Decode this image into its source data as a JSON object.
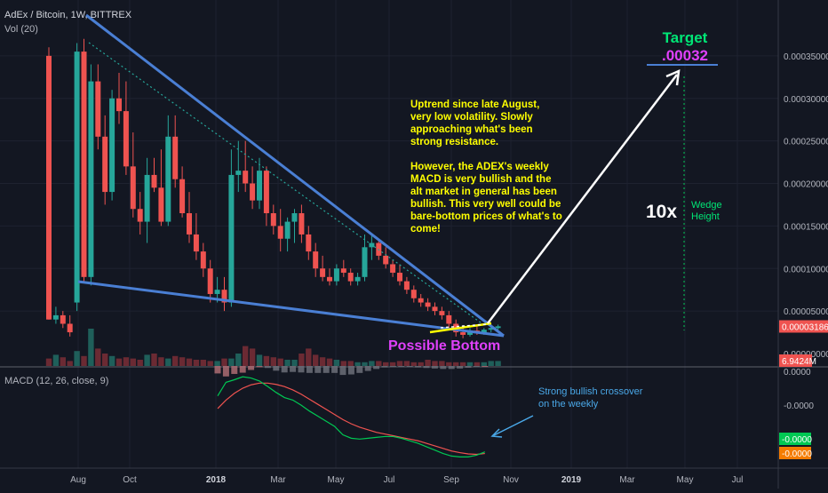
{
  "header": {
    "symbol_line": "AdEx / Bitcoin, 1W, BITTREX",
    "volume_label": "Vol (20)",
    "macd_label": "MACD (12, 26, close, 9)"
  },
  "price_axis": {
    "ticks": [
      "0.00035000",
      "0.00030000",
      "0.00025000",
      "0.00020000",
      "0.00015000",
      "0.00010000",
      "0.00005000",
      "0.00000000"
    ],
    "last_price": "0.00003186",
    "volume_value": "6.9424M"
  },
  "macd_axis": {
    "ticks": [
      "0.0000",
      "-0.0000"
    ],
    "macd_value": "-0.0000",
    "signal_value": "-0.0000"
  },
  "time_axis": {
    "labels": [
      "Aug",
      "Oct",
      "2018",
      "Mar",
      "May",
      "Jul",
      "Sep",
      "Nov",
      "2019",
      "Mar",
      "May",
      "Jul"
    ]
  },
  "annotations": {
    "target_title": "Target",
    "target_value": ".00032",
    "note_lines": [
      "Uptrend since late August,",
      "very low volatility. Slowly",
      "approaching what's been",
      "strong resistance.",
      "",
      "However, the ADEX's weekly",
      "MACD is very bullish and the",
      "alt market in general has been",
      "bullish. This very well could be",
      "bare-bottom prices of what's to",
      "come!"
    ],
    "multiplier": "10x",
    "wedge_line1": "Wedge",
    "wedge_line2": "Height",
    "possible_bottom": "Possible Bottom",
    "crossover_line1": "Strong bullish crossover",
    "crossover_line2": "on the weekly"
  },
  "colors": {
    "background": "#131722",
    "up": "#26a69a",
    "down": "#ef5350",
    "trendline": "#4a7fd4",
    "target": "#00e676",
    "target_value": "#e040fb",
    "note": "#ffff00",
    "macd": "#00c853",
    "signal": "#ef5350",
    "crossover_text": "#4aa8e8"
  },
  "chart_data": {
    "type": "candlestick",
    "interval": "1W",
    "price_scale": {
      "min": 0,
      "max": 0.0004
    },
    "candles": [
      {
        "o": 0.00035,
        "h": 0.00036,
        "l": 4e-05,
        "c": 4e-05
      },
      {
        "o": 4e-05,
        "h": 5.5e-05,
        "l": 3.5e-05,
        "c": 4.5e-05
      },
      {
        "o": 4.5e-05,
        "h": 5e-05,
        "l": 3e-05,
        "c": 3.5e-05
      },
      {
        "o": 3.5e-05,
        "h": 4.5e-05,
        "l": 2e-05,
        "c": 2.5e-05
      },
      {
        "o": 6e-05,
        "h": 0.000365,
        "l": 5e-05,
        "c": 0.000355
      },
      {
        "o": 0.000355,
        "h": 0.00037,
        "l": 8.5e-05,
        "c": 9e-05
      },
      {
        "o": 9e-05,
        "h": 0.00034,
        "l": 8e-05,
        "c": 0.00032
      },
      {
        "o": 0.00032,
        "h": 0.00034,
        "l": 0.00024,
        "c": 0.000255
      },
      {
        "o": 0.000255,
        "h": 0.00028,
        "l": 0.000175,
        "c": 0.00019
      },
      {
        "o": 0.00019,
        "h": 0.00031,
        "l": 0.00018,
        "c": 0.0003
      },
      {
        "o": 0.0003,
        "h": 0.00033,
        "l": 0.00027,
        "c": 0.000285
      },
      {
        "o": 0.000285,
        "h": 0.00032,
        "l": 0.00021,
        "c": 0.00022
      },
      {
        "o": 0.00022,
        "h": 0.00026,
        "l": 0.00016,
        "c": 0.00017
      },
      {
        "o": 0.00017,
        "h": 0.00019,
        "l": 0.00014,
        "c": 0.000155
      },
      {
        "o": 0.000155,
        "h": 0.00023,
        "l": 0.00013,
        "c": 0.00021
      },
      {
        "o": 0.00021,
        "h": 0.00023,
        "l": 0.00019,
        "c": 0.000195
      },
      {
        "o": 0.000195,
        "h": 0.00024,
        "l": 0.00015,
        "c": 0.000155
      },
      {
        "o": 0.000155,
        "h": 0.00028,
        "l": 0.00015,
        "c": 0.000255
      },
      {
        "o": 0.000255,
        "h": 0.00028,
        "l": 0.000195,
        "c": 0.000205
      },
      {
        "o": 0.000205,
        "h": 0.00022,
        "l": 0.00016,
        "c": 0.000165
      },
      {
        "o": 0.000165,
        "h": 0.00019,
        "l": 0.00013,
        "c": 0.00014
      },
      {
        "o": 0.00014,
        "h": 0.000165,
        "l": 0.00011,
        "c": 0.00012
      },
      {
        "o": 0.00012,
        "h": 0.00013,
        "l": 9e-05,
        "c": 0.0001
      },
      {
        "o": 0.0001,
        "h": 0.00011,
        "l": 6e-05,
        "c": 7e-05
      },
      {
        "o": 7e-05,
        "h": 9e-05,
        "l": 6e-05,
        "c": 7.5e-05
      },
      {
        "o": 7.5e-05,
        "h": 9e-05,
        "l": 5e-05,
        "c": 6e-05
      },
      {
        "o": 6e-05,
        "h": 0.00024,
        "l": 5.5e-05,
        "c": 0.00021
      },
      {
        "o": 0.00021,
        "h": 0.00025,
        "l": 0.00019,
        "c": 0.000215
      },
      {
        "o": 0.000215,
        "h": 0.00025,
        "l": 0.00019,
        "c": 0.0002
      },
      {
        "o": 0.0002,
        "h": 0.00022,
        "l": 0.00017,
        "c": 0.00018
      },
      {
        "o": 0.00018,
        "h": 0.00023,
        "l": 0.00017,
        "c": 0.000215
      },
      {
        "o": 0.000215,
        "h": 0.00022,
        "l": 0.00015,
        "c": 0.000165
      },
      {
        "o": 0.000165,
        "h": 0.000175,
        "l": 0.00014,
        "c": 0.00015
      },
      {
        "o": 0.00015,
        "h": 0.00017,
        "l": 0.00012,
        "c": 0.000135
      },
      {
        "o": 0.000135,
        "h": 0.00016,
        "l": 0.00012,
        "c": 0.000155
      },
      {
        "o": 0.000155,
        "h": 0.00017,
        "l": 0.00013,
        "c": 0.000165
      },
      {
        "o": 0.000165,
        "h": 0.000175,
        "l": 0.00013,
        "c": 0.00014
      },
      {
        "o": 0.00014,
        "h": 0.00015,
        "l": 0.00011,
        "c": 0.00012
      },
      {
        "o": 0.00012,
        "h": 0.00013,
        "l": 9e-05,
        "c": 0.0001
      },
      {
        "o": 0.0001,
        "h": 0.000115,
        "l": 8.5e-05,
        "c": 9e-05
      },
      {
        "o": 9e-05,
        "h": 0.0001,
        "l": 8e-05,
        "c": 8.5e-05
      },
      {
        "o": 8.5e-05,
        "h": 0.000105,
        "l": 8e-05,
        "c": 0.0001
      },
      {
        "o": 0.0001,
        "h": 0.00011,
        "l": 9e-05,
        "c": 9.5e-05
      },
      {
        "o": 9.5e-05,
        "h": 0.0001,
        "l": 8e-05,
        "c": 8.5e-05
      },
      {
        "o": 8.5e-05,
        "h": 9.5e-05,
        "l": 8e-05,
        "c": 9e-05
      },
      {
        "o": 9e-05,
        "h": 0.00014,
        "l": 8.5e-05,
        "c": 0.000125
      },
      {
        "o": 0.000125,
        "h": 0.00014,
        "l": 0.00011,
        "c": 0.00013
      },
      {
        "o": 0.00013,
        "h": 0.000135,
        "l": 0.00011,
        "c": 0.000115
      },
      {
        "o": 0.000115,
        "h": 0.000125,
        "l": 0.0001,
        "c": 0.000105
      },
      {
        "o": 0.000105,
        "h": 0.00011,
        "l": 9e-05,
        "c": 9.5e-05
      },
      {
        "o": 9.5e-05,
        "h": 0.000105,
        "l": 8e-05,
        "c": 8.5e-05
      },
      {
        "o": 8.5e-05,
        "h": 9e-05,
        "l": 7e-05,
        "c": 7.5e-05
      },
      {
        "o": 7.5e-05,
        "h": 8e-05,
        "l": 6e-05,
        "c": 6.5e-05
      },
      {
        "o": 6.5e-05,
        "h": 7e-05,
        "l": 5.5e-05,
        "c": 6e-05
      },
      {
        "o": 6e-05,
        "h": 6.5e-05,
        "l": 5e-05,
        "c": 5.5e-05
      },
      {
        "o": 5.5e-05,
        "h": 6e-05,
        "l": 4.5e-05,
        "c": 5e-05
      },
      {
        "o": 5e-05,
        "h": 5.5e-05,
        "l": 4e-05,
        "c": 4.5e-05
      },
      {
        "o": 4.5e-05,
        "h": 5e-05,
        "l": 3e-05,
        "c": 3.5e-05
      },
      {
        "o": 3.5e-05,
        "h": 4e-05,
        "l": 2e-05,
        "c": 2.5e-05
      },
      {
        "o": 2.5e-05,
        "h": 3e-05,
        "l": 1.8e-05,
        "c": 2.2e-05
      },
      {
        "o": 2.2e-05,
        "h": 3e-05,
        "l": 2e-05,
        "c": 2.7e-05
      },
      {
        "o": 2.7e-05,
        "h": 3.2e-05,
        "l": 2.2e-05,
        "c": 2.4e-05
      },
      {
        "o": 2.4e-05,
        "h": 3e-05,
        "l": 2.2e-05,
        "c": 2.8e-05
      },
      {
        "o": 2.8e-05,
        "h": 3.3e-05,
        "l": 2.5e-05,
        "c": 3e-05
      },
      {
        "o": 3e-05,
        "h": 3.4e-05,
        "l": 2.8e-05,
        "c": 3.2e-05
      }
    ],
    "volume": [
      6,
      9,
      7,
      4,
      12,
      8,
      30,
      14,
      10,
      8,
      6,
      7,
      6,
      5,
      9,
      10,
      7,
      6,
      8,
      7,
      6,
      5,
      5,
      4,
      4,
      6,
      6,
      10,
      16,
      14,
      9,
      8,
      7,
      6,
      5,
      5,
      10,
      14,
      9,
      7,
      6,
      5,
      4,
      4,
      3,
      3,
      4,
      4,
      3,
      3,
      4,
      4,
      3,
      3,
      5,
      4,
      4,
      3,
      3,
      3,
      3,
      3,
      3,
      4,
      4
    ],
    "macd": [
      0.4,
      0.72,
      0.78,
      0.85,
      0.82,
      0.75,
      0.62,
      0.48,
      0.36,
      0.3,
      0.18,
      0.04,
      -0.08,
      -0.2,
      -0.32,
      -0.52,
      -0.6,
      -0.62,
      -0.6,
      -0.58,
      -0.56,
      -0.56,
      -0.6,
      -0.66,
      -0.72,
      -0.8,
      -0.88,
      -0.96,
      -1.02,
      -1.04,
      -1.04,
      -1.0,
      -0.92
    ],
    "signal": [
      0.1,
      0.3,
      0.46,
      0.58,
      0.66,
      0.7,
      0.7,
      0.67,
      0.62,
      0.54,
      0.44,
      0.32,
      0.2,
      0.08,
      -0.04,
      -0.16,
      -0.26,
      -0.34,
      -0.4,
      -0.46,
      -0.5,
      -0.54,
      -0.58,
      -0.62,
      -0.66,
      -0.72,
      -0.78,
      -0.84,
      -0.9,
      -0.94,
      -0.97,
      -0.98,
      -0.96
    ],
    "macd_range": [
      -1.2,
      1.0
    ],
    "target_price": 0.00032,
    "last_price": 3.186e-05
  }
}
